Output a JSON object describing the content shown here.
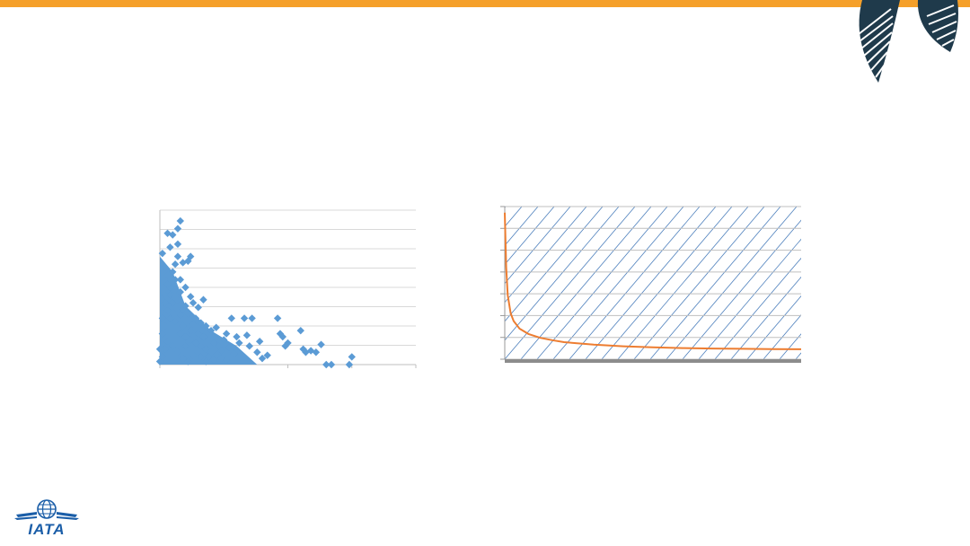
{
  "theme": {
    "accent": "#f5a02a",
    "brand_blue": "#1b5ea8",
    "dark_teal": "#1f3a4b",
    "scatter_color": "#5b9bd5",
    "curve_color": "#ed7d31"
  },
  "logo": {
    "text": "IATA"
  },
  "chart_data": [
    {
      "type": "scatter",
      "marker": "diamond",
      "grid": true,
      "xlim": [
        0,
        1
      ],
      "ylim": [
        0,
        1
      ],
      "tick_labels_visible": false,
      "series": [
        {
          "points": [
            [
              0.0,
              0.02
            ],
            [
              0.01,
              0.05
            ],
            [
              0.02,
              0.1
            ],
            [
              0.03,
              0.15
            ],
            [
              0.01,
              0.2
            ],
            [
              0.02,
              0.25
            ],
            [
              0.04,
              0.3
            ],
            [
              0.03,
              0.35
            ],
            [
              0.05,
              0.4
            ],
            [
              0.02,
              0.45
            ],
            [
              0.04,
              0.5
            ],
            [
              0.06,
              0.55
            ],
            [
              0.03,
              0.58
            ],
            [
              0.02,
              0.63
            ],
            [
              0.05,
              0.6
            ],
            [
              0.06,
              0.65
            ],
            [
              0.01,
              0.72
            ],
            [
              0.04,
              0.76
            ],
            [
              0.07,
              0.78
            ],
            [
              0.03,
              0.85
            ],
            [
              0.05,
              0.84
            ],
            [
              0.07,
              0.88
            ],
            [
              0.08,
              0.93
            ],
            [
              0.07,
              0.7
            ],
            [
              0.09,
              0.66
            ],
            [
              0.11,
              0.67
            ],
            [
              0.12,
              0.7
            ],
            [
              0.08,
              0.55
            ],
            [
              0.1,
              0.5
            ],
            [
              0.12,
              0.44
            ],
            [
              0.13,
              0.4
            ],
            [
              0.15,
              0.37
            ],
            [
              0.17,
              0.42
            ],
            [
              0.11,
              0.33
            ],
            [
              0.14,
              0.3
            ],
            [
              0.16,
              0.27
            ],
            [
              0.18,
              0.25
            ],
            [
              0.2,
              0.22
            ],
            [
              0.22,
              0.24
            ],
            [
              0.08,
              0.2
            ],
            [
              0.1,
              0.18
            ],
            [
              0.12,
              0.16
            ],
            [
              0.14,
              0.14
            ],
            [
              0.16,
              0.12
            ],
            [
              0.18,
              0.1
            ],
            [
              0.2,
              0.08
            ],
            [
              0.22,
              0.06
            ],
            [
              0.24,
              0.04
            ],
            [
              0.26,
              0.03
            ],
            [
              0.19,
              0.05
            ],
            [
              0.06,
              0.28
            ],
            [
              0.08,
              0.32
            ],
            [
              0.09,
              0.36
            ],
            [
              0.05,
              0.12
            ],
            [
              0.07,
              0.08
            ],
            [
              0.09,
              0.04
            ],
            [
              0.11,
              0.02
            ],
            [
              0.13,
              0.06
            ],
            [
              0.15,
              0.2
            ],
            [
              0.17,
              0.18
            ],
            [
              0.21,
              0.14
            ],
            [
              0.23,
              0.12
            ],
            [
              0.25,
              0.16
            ],
            [
              0.27,
              0.11
            ],
            [
              0.29,
              0.07
            ],
            [
              0.28,
              0.3
            ],
            [
              0.33,
              0.3
            ],
            [
              0.36,
              0.3
            ],
            [
              0.3,
              0.18
            ],
            [
              0.31,
              0.14
            ],
            [
              0.34,
              0.19
            ],
            [
              0.35,
              0.12
            ],
            [
              0.38,
              0.08
            ],
            [
              0.4,
              0.04
            ],
            [
              0.42,
              0.06
            ],
            [
              0.39,
              0.15
            ],
            [
              0.46,
              0.3
            ],
            [
              0.47,
              0.2
            ],
            [
              0.48,
              0.18
            ],
            [
              0.49,
              0.12
            ],
            [
              0.5,
              0.14
            ],
            [
              0.55,
              0.22
            ],
            [
              0.56,
              0.1
            ],
            [
              0.57,
              0.08
            ],
            [
              0.59,
              0.09
            ],
            [
              0.61,
              0.08
            ],
            [
              0.63,
              0.13
            ],
            [
              0.65,
              0.0
            ],
            [
              0.67,
              0.0
            ],
            [
              0.74,
              0.0
            ],
            [
              0.75,
              0.05
            ],
            [
              0.02,
              0.4
            ],
            [
              0.04,
              0.45
            ],
            [
              0.06,
              0.48
            ],
            [
              0.03,
              0.52
            ],
            [
              0.01,
              0.3
            ],
            [
              0.0,
              0.1
            ],
            [
              0.09,
              0.25
            ],
            [
              0.1,
              0.12
            ],
            [
              0.13,
              0.26
            ],
            [
              0.16,
              0.05
            ],
            [
              0.18,
              0.02
            ],
            [
              0.21,
              0.03
            ],
            [
              0.24,
              0.09
            ],
            [
              0.26,
              0.2
            ],
            [
              0.05,
              0.34
            ],
            [
              0.07,
              0.42
            ],
            [
              0.08,
              0.47
            ],
            [
              0.1,
              0.38
            ],
            [
              0.12,
              0.22
            ]
          ]
        }
      ]
    },
    {
      "type": "line",
      "grid": true,
      "xlim": [
        0,
        1
      ],
      "ylim": [
        0,
        1
      ],
      "tick_labels_visible": false,
      "series": [
        {
          "x": [
            0.0,
            0.005,
            0.01,
            0.02,
            0.03,
            0.05,
            0.08,
            0.12,
            0.16,
            0.2,
            0.3,
            0.4,
            0.5,
            0.6,
            0.7,
            0.8,
            0.9,
            1.0
          ],
          "y": [
            0.96,
            0.6,
            0.42,
            0.3,
            0.25,
            0.2,
            0.165,
            0.14,
            0.125,
            0.112,
            0.095,
            0.085,
            0.078,
            0.073,
            0.07,
            0.068,
            0.066,
            0.065
          ]
        }
      ]
    }
  ]
}
